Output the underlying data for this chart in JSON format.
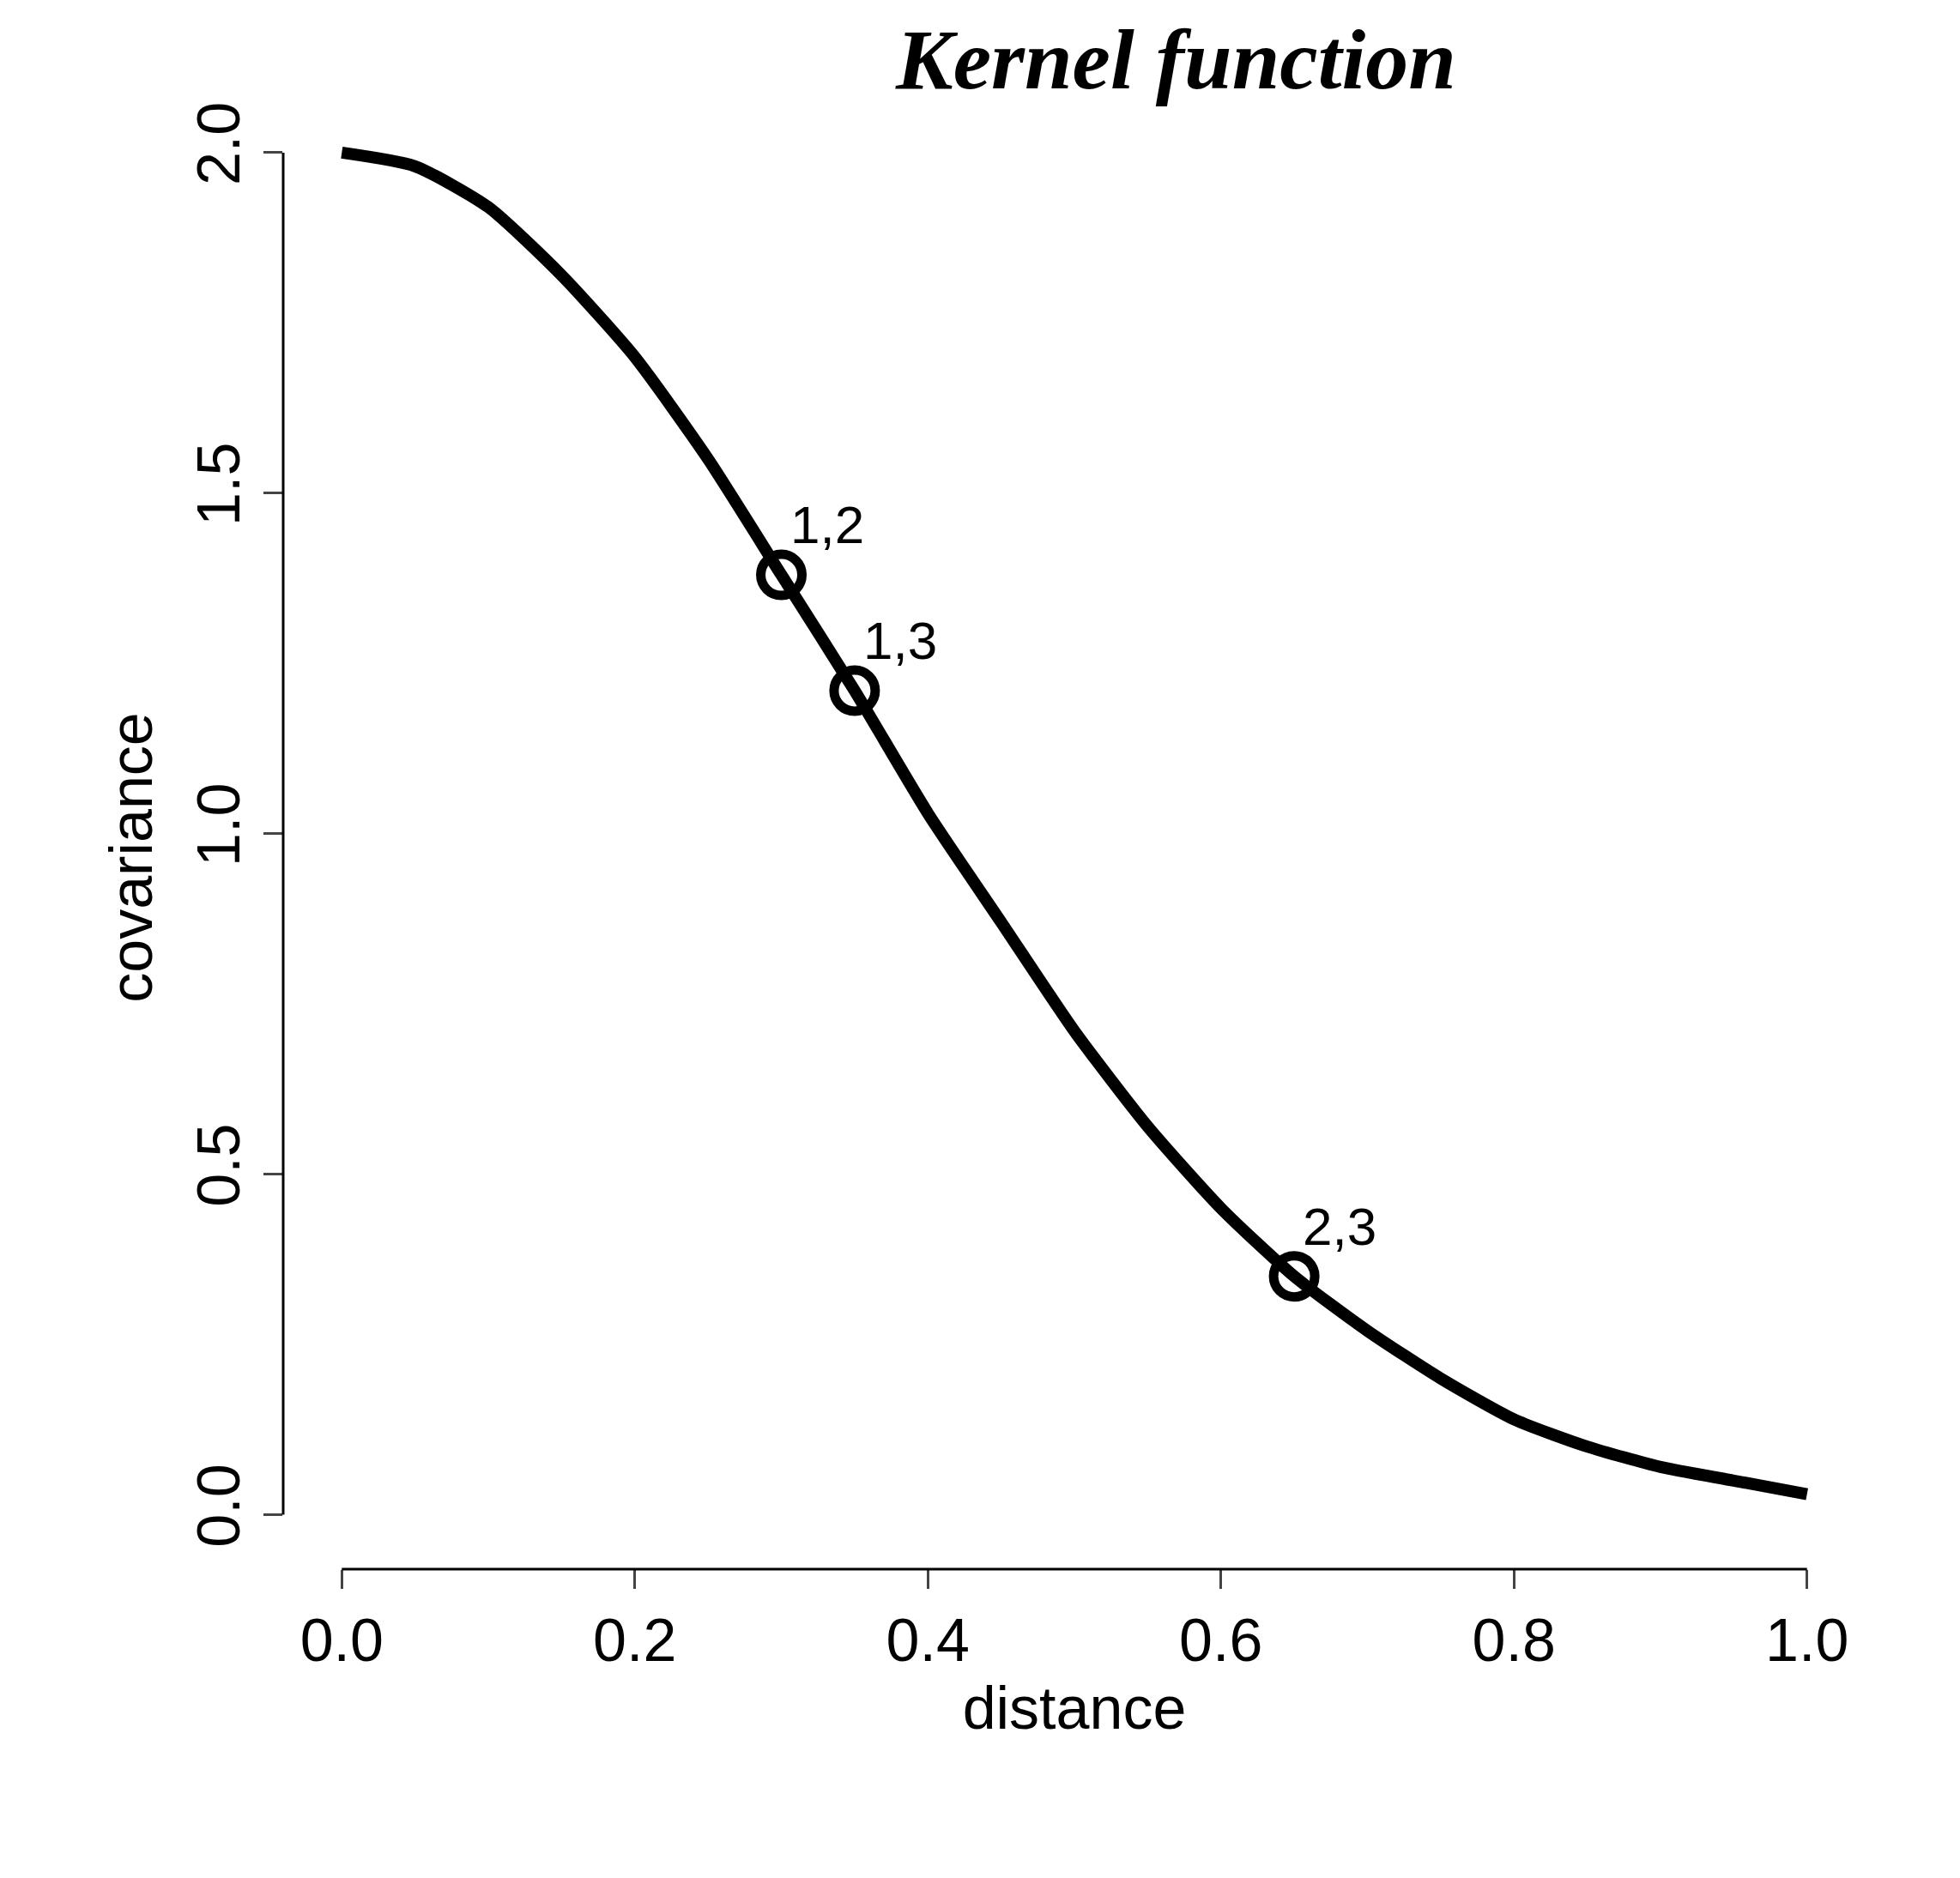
{
  "chart_data": {
    "type": "line",
    "title": "Kernel function",
    "xlabel": "distance",
    "ylabel": "covariance",
    "series": [
      {
        "color": "#000000",
        "marker": "none",
        "line_style": "solid",
        "x": [
          0,
          0.05,
          0.1,
          0.15,
          0.2,
          0.25,
          0.3,
          0.35,
          0.4,
          0.45,
          0.5,
          0.55,
          0.6,
          0.65,
          0.7,
          0.75,
          0.8,
          0.85,
          0.9,
          0.95,
          1.0
        ],
        "values": [
          2.0,
          1.98,
          1.92,
          1.82,
          1.7,
          1.55,
          1.38,
          1.21,
          1.03,
          0.87,
          0.71,
          0.57,
          0.45,
          0.35,
          0.27,
          0.2,
          0.14,
          0.1,
          0.07,
          0.05,
          0.03
        ]
      },
      {
        "type": "scatter",
        "color": "#000000",
        "marker": "circle",
        "x": [
          0.3,
          0.35,
          0.65
        ],
        "values": [
          1.38,
          1.21,
          0.35
        ]
      }
    ],
    "annotations": [
      {
        "text": "1,2",
        "x": 0.3,
        "y": 1.38
      },
      {
        "text": "1,3",
        "x": 0.35,
        "y": 1.21
      },
      {
        "text": "2,3",
        "x": 0.65,
        "y": 0.35
      }
    ],
    "xlim": [
      0,
      1.0
    ],
    "ylim": [
      0,
      2.0
    ],
    "xticks": [
      {
        "value": 0,
        "label": "0.0"
      },
      0.2,
      0.4,
      0.6,
      0.8,
      {
        "value": 1.0,
        "label": "1.0"
      }
    ],
    "yticks": [
      {
        "value": 0,
        "label": "0.0"
      },
      0.5,
      {
        "value": 1.0,
        "label": "1.0"
      },
      1.5,
      {
        "value": 2.0,
        "label": "2.0"
      }
    ]
  }
}
